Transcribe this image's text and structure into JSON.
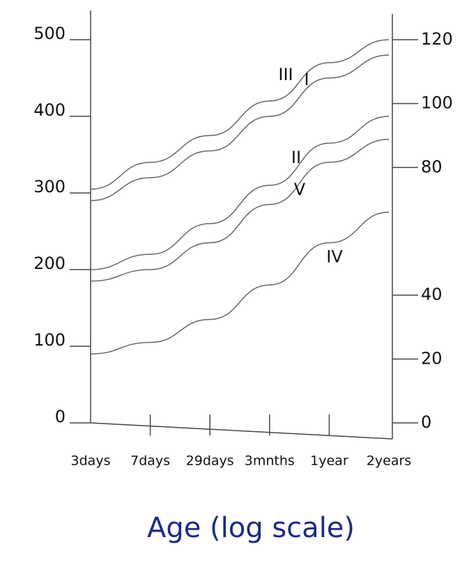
{
  "chart_data": {
    "type": "line",
    "x_label": "Age (log scale)",
    "categories": [
      "3days",
      "7days",
      "29days",
      "3mnths",
      "1year",
      "2years"
    ],
    "ylim": [
      0,
      500
    ],
    "yticks": [
      0,
      100,
      200,
      300,
      400,
      500
    ],
    "y2lim": [
      0,
      120
    ],
    "y2ticks": [
      0,
      20,
      40,
      80,
      100,
      120
    ],
    "series": [
      {
        "name": "III",
        "color": "#666666",
        "values": [
          305,
          340,
          375,
          420,
          470,
          500
        ]
      },
      {
        "name": "I",
        "color": "#666666",
        "values": [
          290,
          320,
          355,
          400,
          450,
          480
        ]
      },
      {
        "name": "II",
        "color": "#666666",
        "values": [
          200,
          220,
          260,
          310,
          365,
          400
        ]
      },
      {
        "name": "V",
        "color": "#666666",
        "values": [
          185,
          200,
          235,
          285,
          340,
          370
        ]
      },
      {
        "name": "IV",
        "color": "#666666",
        "values": [
          90,
          105,
          135,
          180,
          235,
          275
        ]
      }
    ]
  }
}
